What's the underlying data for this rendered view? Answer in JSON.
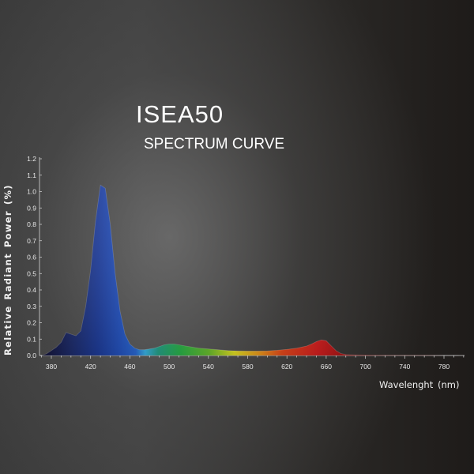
{
  "title": "ISEA50",
  "subtitle": "SPECTRUM CURVE",
  "chart_data": {
    "type": "area",
    "title": "ISEA50",
    "subtitle": "SPECTRUM CURVE",
    "xlabel": "Wavelenght (nm)",
    "ylabel": "Relative Radiant Power (%)",
    "xlim": [
      365,
      800
    ],
    "ylim": [
      0,
      1.2
    ],
    "x_ticks": [
      380,
      420,
      460,
      500,
      540,
      580,
      620,
      660,
      700,
      740,
      780
    ],
    "y_ticks": [
      0.0,
      0.1,
      0.2,
      0.3,
      0.4,
      0.5,
      0.6,
      0.7,
      0.8,
      0.9,
      1.0,
      1.1,
      1.2
    ],
    "y_tick_labels": [
      "0.0",
      "0.1",
      "0.2",
      "0.3",
      "0.4",
      "0.5",
      "0.6",
      "0.7",
      "0.8",
      "0.9",
      "1.0",
      "1.1",
      "1.2"
    ],
    "grid": false,
    "series": [
      {
        "x": [
          370,
          375,
          380,
          385,
          390,
          395,
          400,
          405,
          410,
          415,
          420,
          425,
          430,
          435,
          440,
          445,
          450,
          455,
          460,
          465,
          470,
          475,
          480,
          485,
          490,
          495,
          500,
          505,
          510,
          515,
          520,
          530,
          540,
          550,
          560,
          570,
          580,
          590,
          600,
          610,
          620,
          630,
          640,
          645,
          650,
          655,
          660,
          665,
          670,
          675,
          680,
          690,
          700,
          720,
          740,
          760,
          780,
          795
        ],
        "y": [
          0.0,
          0.01,
          0.03,
          0.05,
          0.08,
          0.14,
          0.13,
          0.12,
          0.15,
          0.3,
          0.52,
          0.82,
          1.04,
          1.02,
          0.8,
          0.5,
          0.27,
          0.13,
          0.07,
          0.045,
          0.035,
          0.035,
          0.04,
          0.045,
          0.055,
          0.065,
          0.07,
          0.07,
          0.065,
          0.06,
          0.055,
          0.045,
          0.04,
          0.035,
          0.03,
          0.028,
          0.027,
          0.027,
          0.028,
          0.032,
          0.037,
          0.045,
          0.058,
          0.07,
          0.085,
          0.095,
          0.09,
          0.06,
          0.03,
          0.012,
          0.006,
          0.004,
          0.003,
          0.002,
          0.001,
          0.001,
          0.0,
          0.0
        ]
      }
    ]
  }
}
